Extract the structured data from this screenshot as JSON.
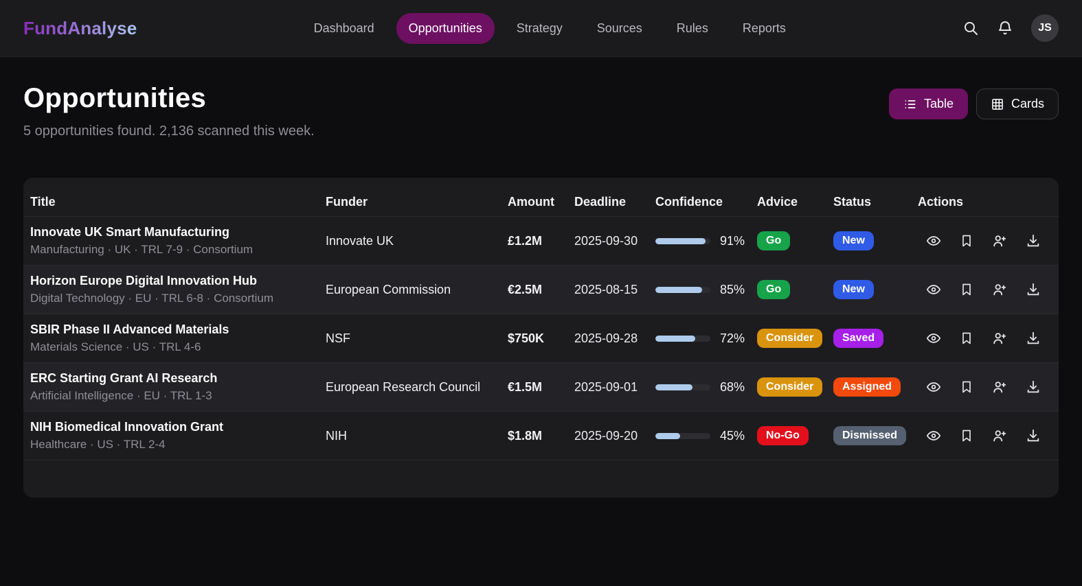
{
  "brand": {
    "name_primary": "Fund",
    "name_secondary": "Analyse",
    "full": "FundAnalyse"
  },
  "nav": {
    "items": [
      {
        "label": "Dashboard",
        "active": false
      },
      {
        "label": "Opportunities",
        "active": true
      },
      {
        "label": "Strategy",
        "active": false
      },
      {
        "label": "Sources",
        "active": false
      },
      {
        "label": "Rules",
        "active": false
      },
      {
        "label": "Reports",
        "active": false
      }
    ],
    "icons": [
      "search-icon",
      "bell-icon"
    ],
    "avatar_initials": "JS",
    "active_pill_color": "#6d1061"
  },
  "page": {
    "title": "Opportunities",
    "subtitle": "5 opportunities found. 2,136 scanned this week."
  },
  "view_toggle": {
    "table_label": "Table",
    "cards_label": "Cards",
    "active": "Table"
  },
  "table": {
    "columns": [
      "Title",
      "Funder",
      "Amount",
      "Deadline",
      "Confidence",
      "Advice",
      "Status",
      "Actions"
    ],
    "rows": [
      {
        "title": "Innovate UK Smart Manufacturing",
        "meta": "Manufacturing · UK · TRL 7-9 · Consortium",
        "funder": "Innovate UK",
        "amount": "£1.2M",
        "deadline": "2025-09-30",
        "confidence_pct": 91,
        "confidence_label": "91%",
        "advice": {
          "label": "Go",
          "color": "#17a34a"
        },
        "status": {
          "label": "New",
          "color": "#2f5be7"
        }
      },
      {
        "title": "Horizon Europe Digital Innovation Hub",
        "meta": "Digital Technology · EU · TRL 6-8 · Consortium",
        "funder": "European Commission",
        "amount": "€2.5M",
        "deadline": "2025-08-15",
        "confidence_pct": 85,
        "confidence_label": "85%",
        "advice": {
          "label": "Go",
          "color": "#17a34a"
        },
        "status": {
          "label": "New",
          "color": "#2f5be7"
        }
      },
      {
        "title": "SBIR Phase II Advanced Materials",
        "meta": "Materials Science · US · TRL 4-6",
        "funder": "NSF",
        "amount": "$750K",
        "deadline": "2025-09-28",
        "confidence_pct": 72,
        "confidence_label": "72%",
        "advice": {
          "label": "Consider",
          "color": "#d9930d"
        },
        "status": {
          "label": "Saved",
          "color": "#a620e8"
        }
      },
      {
        "title": "ERC Starting Grant AI Research",
        "meta": "Artificial Intelligence · EU · TRL 1-3",
        "funder": "European Research Council",
        "amount": "€1.5M",
        "deadline": "2025-09-01",
        "confidence_pct": 68,
        "confidence_label": "68%",
        "advice": {
          "label": "Consider",
          "color": "#d9930d"
        },
        "status": {
          "label": "Assigned",
          "color": "#f2490c"
        }
      },
      {
        "title": "NIH Biomedical Innovation Grant",
        "meta": "Healthcare · US · TRL 2-4",
        "funder": "NIH",
        "amount": "$1.8M",
        "deadline": "2025-09-20",
        "confidence_pct": 45,
        "confidence_label": "45%",
        "advice": {
          "label": "No-Go",
          "color": "#e3101c"
        },
        "status": {
          "label": "Dismissed",
          "color": "#556070"
        }
      }
    ],
    "action_icons": [
      "view",
      "bookmark",
      "assign",
      "download"
    ]
  },
  "colors": {
    "page_bg": "#0d0d0f",
    "navbar_bg": "#1b1b1d",
    "card_bg": "#1c1c1f",
    "row_alt_bg": "#232327",
    "accent_purple": "#6d1061",
    "progress_fill": "#aecbeb",
    "progress_track": "#2d2d31"
  }
}
